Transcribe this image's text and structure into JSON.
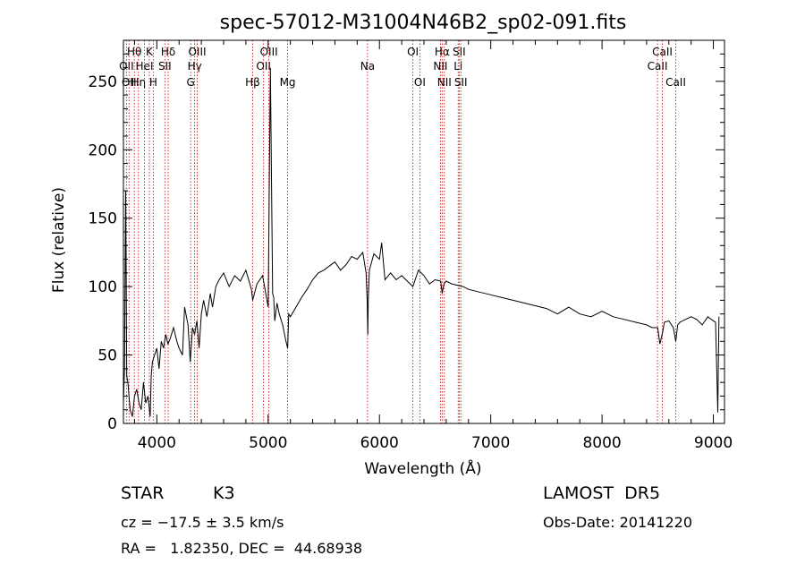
{
  "chart_data": {
    "type": "line",
    "title": "spec-57012-M31004N46B2_sp02-091.fits",
    "xlabel": "Wavelength (Å)",
    "ylabel": "Flux (relative)",
    "xlim": [
      3700,
      9100
    ],
    "ylim": [
      0,
      280
    ],
    "xticks": [
      4000,
      5000,
      6000,
      7000,
      8000,
      9000
    ],
    "yticks": [
      0,
      50,
      100,
      150,
      200,
      250
    ],
    "grid": false,
    "series": [
      {
        "x": [
          3700,
          3710,
          3720,
          3730,
          3740,
          3750,
          3760,
          3780,
          3800,
          3820,
          3840,
          3860,
          3880,
          3900,
          3920,
          3940,
          3950,
          3960,
          3980,
          4000,
          4020,
          4040,
          4060,
          4080,
          4100,
          4120,
          4150,
          4180,
          4200,
          4230,
          4250,
          4280,
          4300,
          4320,
          4340,
          4360,
          4380,
          4400,
          4420,
          4450,
          4480,
          4500,
          4530,
          4560,
          4600,
          4650,
          4700,
          4750,
          4800,
          4850,
          4861,
          4900,
          4950,
          5000,
          5020,
          5040,
          5050,
          5060,
          5080,
          5100,
          5130,
          5160,
          5175,
          5185,
          5200,
          5250,
          5300,
          5350,
          5400,
          5450,
          5500,
          5550,
          5600,
          5650,
          5700,
          5750,
          5800,
          5850,
          5880,
          5890,
          5895,
          5900,
          5910,
          5950,
          6000,
          6020,
          6050,
          6100,
          6150,
          6200,
          6250,
          6300,
          6350,
          6400,
          6450,
          6500,
          6550,
          6563,
          6580,
          6600,
          6650,
          6700,
          6750,
          6800,
          6900,
          7000,
          7100,
          7200,
          7300,
          7400,
          7500,
          7600,
          7700,
          7800,
          7900,
          8000,
          8100,
          8200,
          8300,
          8400,
          8450,
          8500,
          8520,
          8542,
          8560,
          8600,
          8640,
          8662,
          8680,
          8700,
          8750,
          8800,
          8850,
          8900,
          8950,
          9000,
          9020,
          9040,
          9050
        ],
        "values": [
          15,
          40,
          170,
          35,
          30,
          20,
          10,
          5,
          20,
          25,
          15,
          10,
          30,
          15,
          20,
          5,
          35,
          45,
          50,
          55,
          40,
          60,
          55,
          65,
          58,
          62,
          70,
          60,
          55,
          50,
          85,
          72,
          45,
          70,
          65,
          75,
          55,
          80,
          90,
          78,
          95,
          85,
          100,
          105,
          110,
          100,
          108,
          104,
          112,
          98,
          90,
          102,
          108,
          85,
          260,
          95,
          92,
          75,
          88,
          80,
          72,
          60,
          55,
          80,
          78,
          85,
          92,
          98,
          105,
          110,
          112,
          115,
          118,
          112,
          116,
          122,
          120,
          125,
          110,
          90,
          65,
          92,
          112,
          124,
          120,
          132,
          105,
          110,
          105,
          108,
          104,
          100,
          112,
          108,
          102,
          105,
          104,
          95,
          102,
          104,
          102,
          101,
          100,
          98,
          96,
          94,
          92,
          90,
          88,
          86,
          84,
          80,
          85,
          80,
          78,
          82,
          78,
          76,
          74,
          72,
          70,
          70,
          58,
          66,
          74,
          75,
          70,
          60,
          72,
          74,
          76,
          78,
          76,
          72,
          78,
          75,
          74,
          8,
          78
        ]
      }
    ],
    "line_markers": [
      {
        "wl": 3727,
        "label": "OII",
        "row": 1
      },
      {
        "wl": 3750,
        "label": "OII",
        "row": 2
      },
      {
        "wl": 3798,
        "label": "Hθ",
        "row": 0
      },
      {
        "wl": 3835,
        "label": "Hη",
        "row": 2
      },
      {
        "wl": 3889,
        "label": "HeI",
        "row": 1
      },
      {
        "wl": 3933,
        "label": "K",
        "row": 0
      },
      {
        "wl": 3968,
        "label": "H",
        "row": 2
      },
      {
        "wl": 4072,
        "label": "SII",
        "row": 1
      },
      {
        "wl": 4102,
        "label": "Hδ",
        "row": 0
      },
      {
        "wl": 4304,
        "label": "G",
        "row": 2
      },
      {
        "wl": 4340,
        "label": "Hγ",
        "row": 1
      },
      {
        "wl": 4363,
        "label": "OIII",
        "row": 0
      },
      {
        "wl": 4861,
        "label": "Hβ",
        "row": 2
      },
      {
        "wl": 4959,
        "label": "OII",
        "row": 1
      },
      {
        "wl": 5007,
        "label": "OIII",
        "row": 0
      },
      {
        "wl": 5175,
        "label": "Mg",
        "row": 2
      },
      {
        "wl": 5893,
        "label": "Na",
        "row": 1
      },
      {
        "wl": 6300,
        "label": "OI",
        "row": 0
      },
      {
        "wl": 6363,
        "label": "OI",
        "row": 2
      },
      {
        "wl": 6548,
        "label": "NII",
        "row": 1
      },
      {
        "wl": 6563,
        "label": "Hα",
        "row": 0
      },
      {
        "wl": 6583,
        "label": "NII",
        "row": 2
      },
      {
        "wl": 6707,
        "label": "Li",
        "row": 1
      },
      {
        "wl": 6716,
        "label": "SII",
        "row": 0
      },
      {
        "wl": 6731,
        "label": "SII",
        "row": 2
      },
      {
        "wl": 8498,
        "label": "CaII",
        "row": 1
      },
      {
        "wl": 8542,
        "label": "CaII",
        "row": 0
      },
      {
        "wl": 8662,
        "label": "CaII",
        "row": 2
      }
    ]
  },
  "info": {
    "class": "STAR",
    "subclass": "K3",
    "survey": "LAMOST  DR5",
    "cz": "cz = −17.5 ± 3.5 km/s",
    "obsdate": "Obs-Date: 20141220",
    "radec": "RA =   1.82350, DEC =  44.68938"
  }
}
